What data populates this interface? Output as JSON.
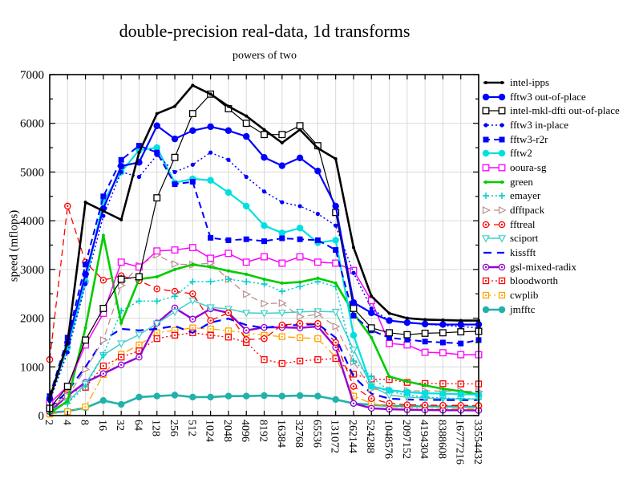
{
  "chart_data": {
    "type": "line",
    "title": "double-precision real-data, 1d transforms",
    "subtitle": "powers of two",
    "ylabel": "speed (mflops)",
    "ylim": [
      0,
      7000
    ],
    "ytick_step": 1000,
    "grid": true,
    "legend_position": "right-outside",
    "x_categories": [
      2,
      4,
      8,
      16,
      32,
      64,
      128,
      256,
      512,
      1024,
      2048,
      4096,
      8192,
      16384,
      32768,
      65536,
      131072,
      262144,
      524288,
      1048576,
      2097152,
      4194304,
      8388608,
      16777216,
      33554432
    ],
    "series": [
      {
        "name": "intel-ipps",
        "color": "#000000",
        "line_style": "solid",
        "line_width": 2.6,
        "marker": "dot",
        "values": [
          350,
          1500,
          4380,
          4200,
          4020,
          5400,
          6200,
          6350,
          6780,
          6600,
          6350,
          6150,
          5870,
          5600,
          5870,
          5490,
          5270,
          3450,
          2450,
          2100,
          2000,
          1970,
          1960,
          1950,
          1950
        ]
      },
      {
        "name": "fftw3 out-of-place",
        "color": "#0000ff",
        "line_style": "solid",
        "line_width": 2.2,
        "marker": "circle",
        "values": [
          350,
          1500,
          2900,
          4250,
          5120,
          5200,
          5950,
          5680,
          5850,
          5930,
          5850,
          5730,
          5300,
          5130,
          5290,
          5020,
          4300,
          2320,
          2110,
          1950,
          1910,
          1880,
          1870,
          1870,
          1870
        ]
      },
      {
        "name": "intel-mkl-dfti out-of-place",
        "color": "#000000",
        "line_style": "solid",
        "line_width": 1.2,
        "marker": "square-open",
        "values": [
          150,
          600,
          1550,
          2200,
          2800,
          2850,
          4470,
          5300,
          6200,
          6600,
          6300,
          6000,
          5770,
          5770,
          5950,
          5540,
          4170,
          2200,
          1800,
          1700,
          1660,
          1690,
          1700,
          1720,
          1730
        ]
      },
      {
        "name": "fftw3 in-place",
        "color": "#0000ff",
        "line_style": "dot",
        "line_width": 1.5,
        "marker": "circle-sm",
        "values": [
          300,
          1300,
          2700,
          4100,
          5000,
          4900,
          5350,
          5000,
          5150,
          5400,
          5250,
          4900,
          4600,
          4380,
          4300,
          4140,
          3900,
          2930,
          2200,
          1950,
          1900,
          1880,
          1850,
          1830,
          1800
        ]
      },
      {
        "name": "fftw3-r2r",
        "color": "#0000ff",
        "line_style": "dash",
        "line_width": 2.0,
        "marker": "square",
        "values": [
          400,
          1600,
          3100,
          4500,
          5250,
          5540,
          5400,
          4750,
          4800,
          3650,
          3600,
          3620,
          3580,
          3640,
          3620,
          3600,
          3400,
          2050,
          1750,
          1600,
          1560,
          1520,
          1500,
          1480,
          1550
        ]
      },
      {
        "name": "fftw2",
        "color": "#00e0e0",
        "line_style": "solid",
        "line_width": 2.2,
        "marker": "circle",
        "values": [
          350,
          1400,
          2750,
          4400,
          5000,
          5450,
          5500,
          4780,
          4860,
          4830,
          4580,
          4300,
          3900,
          3750,
          3850,
          3550,
          3600,
          1650,
          600,
          520,
          480,
          460,
          450,
          440,
          430
        ]
      },
      {
        "name": "ooura-sg",
        "color": "#ff00ff",
        "line_style": "solid",
        "line_width": 1.5,
        "marker": "square-open",
        "values": [
          250,
          600,
          1450,
          2100,
          3150,
          3050,
          3380,
          3400,
          3450,
          3230,
          3330,
          3150,
          3260,
          3130,
          3260,
          3150,
          3130,
          2980,
          2360,
          1480,
          1450,
          1300,
          1290,
          1250,
          1250
        ]
      },
      {
        "name": "green",
        "color": "#00cc00",
        "line_style": "solid",
        "line_width": 2.6,
        "marker": "dot",
        "values": [
          50,
          300,
          1800,
          3700,
          1900,
          2800,
          2850,
          3000,
          3100,
          3050,
          2970,
          2900,
          2800,
          2720,
          2740,
          2820,
          2720,
          2100,
          1600,
          800,
          700,
          620,
          550,
          500,
          430
        ]
      },
      {
        "name": "emayer",
        "color": "#00cccc",
        "line_style": "dot",
        "line_width": 1.5,
        "marker": "plus",
        "values": [
          100,
          250,
          600,
          1250,
          2150,
          2350,
          2350,
          2450,
          2750,
          2750,
          2800,
          2750,
          2700,
          2550,
          2650,
          2750,
          2650,
          1120,
          800,
          500,
          420,
          380,
          360,
          350,
          340
        ]
      },
      {
        "name": "dfftpack",
        "color": "#bc8f8f",
        "line_style": "dash",
        "line_width": 1.3,
        "marker": "tri-right",
        "values": [
          150,
          400,
          950,
          1550,
          2670,
          3080,
          3300,
          3110,
          3100,
          3130,
          2800,
          2490,
          2300,
          2310,
          2030,
          2080,
          1830,
          1100,
          550,
          520,
          510,
          505,
          500,
          500,
          495
        ]
      },
      {
        "name": "fftreal",
        "color": "#ff0000",
        "line_style": "dash",
        "line_width": 1.3,
        "marker": "circle-dot",
        "values": [
          1150,
          4300,
          3150,
          2780,
          2870,
          2770,
          2600,
          2550,
          2500,
          1950,
          2110,
          1560,
          1580,
          1860,
          1890,
          1890,
          1500,
          600,
          350,
          250,
          220,
          215,
          210,
          210,
          205
        ]
      },
      {
        "name": "sciport",
        "color": "#40d0c8",
        "line_style": "solid",
        "line_width": 1.5,
        "marker": "tri-down",
        "values": [
          100,
          280,
          650,
          1240,
          1480,
          1660,
          1890,
          2130,
          2360,
          2220,
          2190,
          2110,
          2100,
          2110,
          2130,
          2140,
          2130,
          1350,
          600,
          420,
          380,
          360,
          350,
          345,
          340
        ]
      },
      {
        "name": "kissfft",
        "color": "#0000ff",
        "line_style": "longdash",
        "line_width": 2.2,
        "marker": "none",
        "values": [
          150,
          500,
          1000,
          1550,
          1780,
          1750,
          1780,
          1840,
          1700,
          1910,
          1990,
          1860,
          1800,
          1850,
          1860,
          1880,
          1600,
          800,
          450,
          350,
          330,
          325,
          320,
          320,
          320
        ]
      },
      {
        "name": "gsl-mixed-radix",
        "color": "#9400d3",
        "line_style": "solid",
        "line_width": 2.4,
        "marker": "circle-dot",
        "values": [
          80,
          410,
          680,
          860,
          1040,
          1200,
          1900,
          2210,
          1980,
          2190,
          2110,
          1750,
          1810,
          1810,
          1800,
          1830,
          1400,
          250,
          150,
          130,
          120,
          115,
          110,
          110,
          105
        ]
      },
      {
        "name": "bloodworth",
        "color": "#ff0000",
        "line_style": "dot",
        "line_width": 1.3,
        "marker": "square-dot",
        "values": [
          130,
          450,
          580,
          1020,
          1200,
          1330,
          1580,
          1650,
          1700,
          1650,
          1610,
          1500,
          1150,
          1070,
          1120,
          1150,
          1170,
          850,
          750,
          740,
          680,
          660,
          655,
          650,
          650
        ]
      },
      {
        "name": "cwplib",
        "color": "#ffa500",
        "line_style": "dashdot",
        "line_width": 1.3,
        "marker": "square-dot",
        "values": [
          30,
          80,
          180,
          840,
          1260,
          1450,
          1700,
          1750,
          1800,
          1780,
          1740,
          1700,
          1650,
          1620,
          1600,
          1580,
          1200,
          400,
          250,
          180,
          160,
          150,
          145,
          140,
          140
        ]
      },
      {
        "name": "jmfftc",
        "color": "#20b2aa",
        "line_style": "solid",
        "line_width": 2.6,
        "marker": "circle",
        "values": [
          60,
          90,
          160,
          310,
          230,
          380,
          400,
          420,
          380,
          380,
          400,
          400,
          410,
          400,
          410,
          400,
          330,
          250,
          220,
          200,
          195,
          190,
          190,
          185,
          180
        ]
      }
    ]
  }
}
